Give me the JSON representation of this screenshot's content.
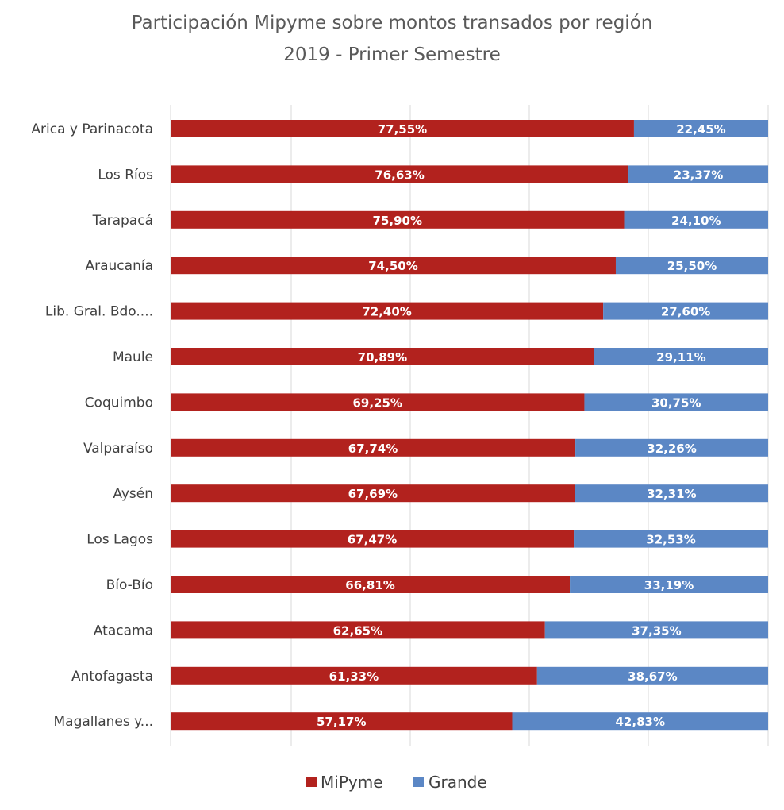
{
  "chart_data": {
    "type": "bar",
    "orientation": "horizontal",
    "stacked": "100%",
    "title": "Participación Mipyme sobre montos transados por región",
    "subtitle": "2019 - Primer Semestre",
    "categories": [
      "Arica y Parinacota",
      "Los Ríos",
      "Tarapacá",
      "Araucanía",
      "Lib. Gral. Bdo....",
      "Maule",
      "Coquimbo",
      "Valparaíso",
      "Aysén",
      "Los Lagos",
      "Bío-Bío",
      "Atacama",
      "Antofagasta",
      "Magallanes y..."
    ],
    "series": [
      {
        "name": "MiPyme",
        "color": "#B2221E",
        "values": [
          77.55,
          76.63,
          75.9,
          74.5,
          72.4,
          70.89,
          69.25,
          67.74,
          67.69,
          67.47,
          66.81,
          62.65,
          61.33,
          57.17
        ],
        "labels": [
          "77,55%",
          "76,63%",
          "75,90%",
          "74,50%",
          "72,40%",
          "70,89%",
          "69,25%",
          "67,74%",
          "67,69%",
          "67,47%",
          "66,81%",
          "62,65%",
          "61,33%",
          "57,17%"
        ]
      },
      {
        "name": "Grande",
        "color": "#5B87C5",
        "values": [
          22.45,
          23.37,
          24.1,
          25.5,
          27.6,
          29.11,
          30.75,
          32.26,
          32.31,
          32.53,
          33.19,
          37.35,
          38.67,
          42.83
        ],
        "labels": [
          "22,45%",
          "23,37%",
          "24,10%",
          "25,50%",
          "27,60%",
          "29,11%",
          "30,75%",
          "32,26%",
          "32,31%",
          "32,53%",
          "33,19%",
          "37,35%",
          "38,67%",
          "42,83%"
        ]
      }
    ],
    "xlim": [
      0,
      100
    ],
    "x_gridlines": true,
    "x_tick_labels_shown": false,
    "legend_position": "bottom"
  }
}
